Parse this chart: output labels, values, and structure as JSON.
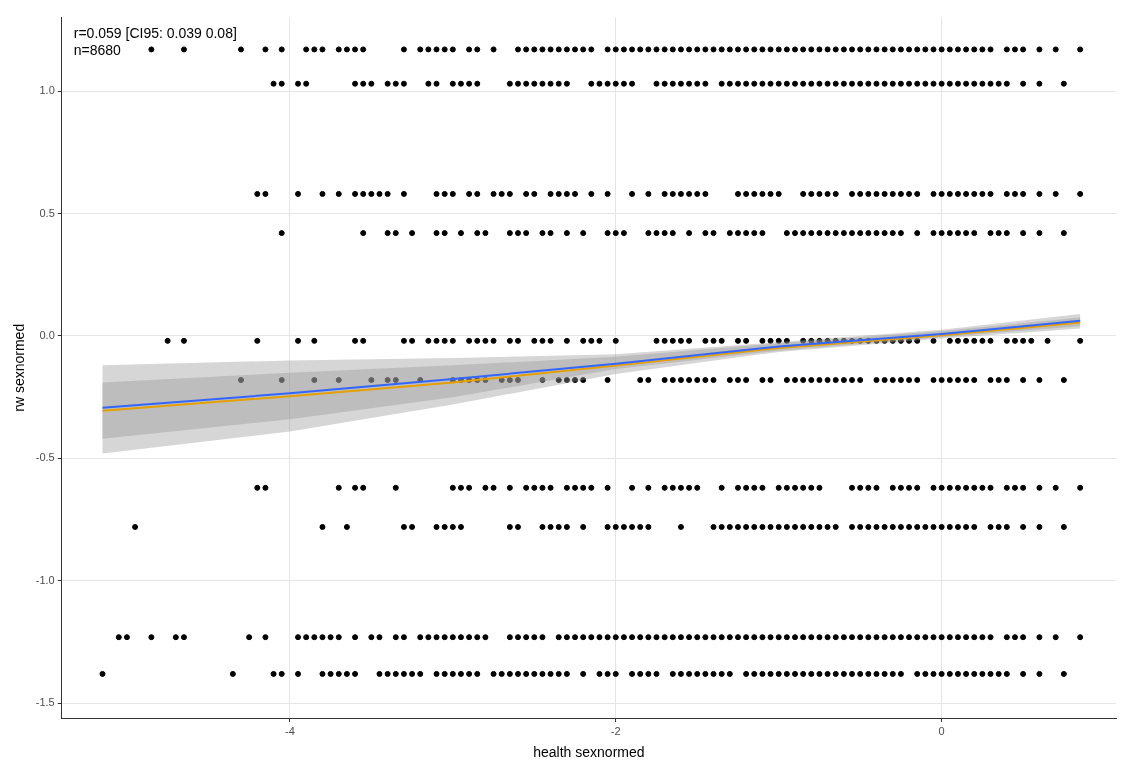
{
  "chart_data": {
    "type": "scatter",
    "xlabel": "health sexnormed",
    "ylabel": "rw sexnormed",
    "annotations": [
      "r=0.059 [CI95: 0.039 0.08]",
      "n=8680"
    ],
    "xlim": [
      -5.4,
      1.07
    ],
    "ylim": [
      -1.56,
      1.3
    ],
    "xticks": [
      -4,
      -2,
      0
    ],
    "yticks": [
      {
        "value": -1.5,
        "label": "-1.5"
      },
      {
        "value": -1,
        "label": "-1.0"
      },
      {
        "value": -0.5,
        "label": "-0.5"
      },
      {
        "value": 0,
        "label": "0.0"
      },
      {
        "value": 0.5,
        "label": "0.5"
      },
      {
        "value": 1,
        "label": "1.0"
      }
    ],
    "grid": true,
    "legend": false,
    "marker": "circle",
    "series": [
      {
        "color": "#000000",
        "x": [
          -4.85,
          -4.65,
          -4.3,
          -4.15,
          -4.05,
          -3.9,
          -3.85,
          -3.8,
          -3.7,
          -3.65,
          -3.6,
          -3.55,
          -3.3,
          -3.2,
          -3.15,
          -3.1,
          -3.05,
          -3.0,
          -2.9,
          -2.85,
          -2.75,
          -2.6,
          -2.55,
          -2.5,
          -2.45,
          -2.4,
          -2.35,
          -2.3,
          -2.25,
          -2.2,
          -2.15,
          -2.05,
          -2,
          -1.95,
          -1.9,
          -1.85,
          -1.8,
          -1.75,
          -1.7,
          -1.65,
          -1.6,
          -1.55,
          -1.5,
          -1.45,
          -1.4,
          -1.35,
          -1.3,
          -1.25,
          -1.2,
          -1.15,
          -1.1,
          -1.05,
          -1,
          -0.95,
          -0.9,
          -0.85,
          -0.8,
          -0.75,
          -0.7,
          -0.65,
          -0.6,
          -0.55,
          -0.5,
          -0.45,
          -0.4,
          -0.35,
          -0.3,
          -0.25,
          -0.2,
          -0.15,
          -0.1,
          -0.05,
          0,
          0.05,
          0.1,
          0.15,
          0.2,
          0.25,
          0.3,
          0.4,
          0.45,
          0.5,
          0.6,
          0.7,
          0.85
        ],
        "values": [
          1.17,
          1.17,
          1.17,
          1.17,
          1.17,
          1.17,
          1.17,
          1.17,
          1.17,
          1.17,
          1.17,
          1.17,
          1.17,
          1.17,
          1.17,
          1.17,
          1.17,
          1.17,
          1.17,
          1.17,
          1.17,
          1.17,
          1.17,
          1.17,
          1.17,
          1.17,
          1.17,
          1.17,
          1.17,
          1.17,
          1.17,
          1.17,
          1.17,
          1.17,
          1.17,
          1.17,
          1.17,
          1.17,
          1.17,
          1.17,
          1.17,
          1.17,
          1.17,
          1.17,
          1.17,
          1.17,
          1.17,
          1.17,
          1.17,
          1.17,
          1.17,
          1.17,
          1.17,
          1.17,
          1.17,
          1.17,
          1.17,
          1.17,
          1.17,
          1.17,
          1.17,
          1.17,
          1.17,
          1.17,
          1.17,
          1.17,
          1.17,
          1.17,
          1.17,
          1.17,
          1.17,
          1.17,
          1.17,
          1.17,
          1.17,
          1.17,
          1.17,
          1.17,
          1.17,
          1.17,
          1.17,
          1.17,
          1.17,
          1.17,
          1.17
        ]
      },
      {
        "color": "#000000",
        "x": [
          -4.1,
          -4.05,
          -3.95,
          -3.9,
          -3.6,
          -3.55,
          -3.5,
          -3.4,
          -3.35,
          -3.3,
          -3.15,
          -3.1,
          -3.0,
          -2.95,
          -2.9,
          -2.85,
          -2.65,
          -2.6,
          -2.55,
          -2.5,
          -2.45,
          -2.4,
          -2.35,
          -2.3,
          -2.15,
          -2.1,
          -2.05,
          -2,
          -1.95,
          -1.9,
          -1.75,
          -1.7,
          -1.65,
          -1.6,
          -1.55,
          -1.5,
          -1.45,
          -1.35,
          -1.3,
          -1.25,
          -1.2,
          -1.15,
          -1.1,
          -1.05,
          -1,
          -0.95,
          -0.9,
          -0.85,
          -0.8,
          -0.75,
          -0.7,
          -0.65,
          -0.6,
          -0.55,
          -0.5,
          -0.45,
          -0.4,
          -0.35,
          -0.3,
          -0.25,
          -0.2,
          -0.15,
          -0.1,
          -0.05,
          0,
          0.05,
          0.1,
          0.15,
          0.2,
          0.25,
          0.3,
          0.35,
          0.4,
          0.5,
          0.6,
          0.75
        ],
        "values": [
          1.03,
          1.03,
          1.03,
          1.03,
          1.03,
          1.03,
          1.03,
          1.03,
          1.03,
          1.03,
          1.03,
          1.03,
          1.03,
          1.03,
          1.03,
          1.03,
          1.03,
          1.03,
          1.03,
          1.03,
          1.03,
          1.03,
          1.03,
          1.03,
          1.03,
          1.03,
          1.03,
          1.03,
          1.03,
          1.03,
          1.03,
          1.03,
          1.03,
          1.03,
          1.03,
          1.03,
          1.03,
          1.03,
          1.03,
          1.03,
          1.03,
          1.03,
          1.03,
          1.03,
          1.03,
          1.03,
          1.03,
          1.03,
          1.03,
          1.03,
          1.03,
          1.03,
          1.03,
          1.03,
          1.03,
          1.03,
          1.03,
          1.03,
          1.03,
          1.03,
          1.03,
          1.03,
          1.03,
          1.03,
          1.03,
          1.03,
          1.03,
          1.03,
          1.03,
          1.03,
          1.03,
          1.03,
          1.03,
          1.03,
          1.03,
          1.03
        ]
      },
      {
        "color": "#000000",
        "x": [
          -4.2,
          -4.15,
          -3.95,
          -3.8,
          -3.7,
          -3.6,
          -3.55,
          -3.5,
          -3.45,
          -3.4,
          -3.3,
          -3.1,
          -3.05,
          -3.0,
          -2.9,
          -2.85,
          -2.75,
          -2.7,
          -2.65,
          -2.55,
          -2.5,
          -2.4,
          -2.35,
          -2.3,
          -2.25,
          -2.15,
          -2.05,
          -1.9,
          -1.8,
          -1.7,
          -1.65,
          -1.6,
          -1.55,
          -1.5,
          -1.45,
          -1.25,
          -1.2,
          -1.15,
          -1.1,
          -1.05,
          -1.0,
          -0.85,
          -0.8,
          -0.75,
          -0.7,
          -0.65,
          -0.55,
          -0.5,
          -0.45,
          -0.4,
          -0.35,
          -0.3,
          -0.25,
          -0.2,
          -0.15,
          -0.05,
          0,
          0.05,
          0.1,
          0.15,
          0.2,
          0.25,
          0.3,
          0.4,
          0.45,
          0.5,
          0.6,
          0.7,
          0.85
        ],
        "values": [
          0.58,
          0.58,
          0.58,
          0.58,
          0.58,
          0.58,
          0.58,
          0.58,
          0.58,
          0.58,
          0.58,
          0.58,
          0.58,
          0.58,
          0.58,
          0.58,
          0.58,
          0.58,
          0.58,
          0.58,
          0.58,
          0.58,
          0.58,
          0.58,
          0.58,
          0.58,
          0.58,
          0.58,
          0.58,
          0.58,
          0.58,
          0.58,
          0.58,
          0.58,
          0.58,
          0.58,
          0.58,
          0.58,
          0.58,
          0.58,
          0.58,
          0.58,
          0.58,
          0.58,
          0.58,
          0.58,
          0.58,
          0.58,
          0.58,
          0.58,
          0.58,
          0.58,
          0.58,
          0.58,
          0.58,
          0.58,
          0.58,
          0.58,
          0.58,
          0.58,
          0.58,
          0.58,
          0.58,
          0.58,
          0.58,
          0.58,
          0.58,
          0.58,
          0.58
        ]
      },
      {
        "color": "#000000",
        "x": [
          -4.05,
          -3.55,
          -3.4,
          -3.35,
          -3.25,
          -3.1,
          -3.05,
          -2.95,
          -2.85,
          -2.8,
          -2.65,
          -2.6,
          -2.55,
          -2.45,
          -2.4,
          -2.3,
          -2.2,
          -2.05,
          -2,
          -1.95,
          -1.8,
          -1.75,
          -1.7,
          -1.65,
          -1.55,
          -1.45,
          -1.4,
          -1.3,
          -1.25,
          -1.2,
          -1.15,
          -1.1,
          -0.95,
          -0.9,
          -0.85,
          -0.8,
          -0.75,
          -0.7,
          -0.65,
          -0.6,
          -0.55,
          -0.5,
          -0.45,
          -0.4,
          -0.35,
          -0.3,
          -0.25,
          -0.15,
          -0.05,
          0,
          0.05,
          0.1,
          0.15,
          0.2,
          0.3,
          0.35,
          0.4,
          0.5,
          0.6,
          0.75
        ],
        "values": [
          0.42,
          0.42,
          0.42,
          0.42,
          0.42,
          0.42,
          0.42,
          0.42,
          0.42,
          0.42,
          0.42,
          0.42,
          0.42,
          0.42,
          0.42,
          0.42,
          0.42,
          0.42,
          0.42,
          0.42,
          0.42,
          0.42,
          0.42,
          0.42,
          0.42,
          0.42,
          0.42,
          0.42,
          0.42,
          0.42,
          0.42,
          0.42,
          0.42,
          0.42,
          0.42,
          0.42,
          0.42,
          0.42,
          0.42,
          0.42,
          0.42,
          0.42,
          0.42,
          0.42,
          0.42,
          0.42,
          0.42,
          0.42,
          0.42,
          0.42,
          0.42,
          0.42,
          0.42,
          0.42,
          0.42,
          0.42,
          0.42,
          0.42,
          0.42,
          0.42
        ]
      },
      {
        "color": "#000000",
        "x": [
          -4.75,
          -4.65,
          -4.2,
          -3.95,
          -3.85,
          -3.6,
          -3.55,
          -3.3,
          -3.25,
          -3.15,
          -3.1,
          -3.05,
          -3.0,
          -2.9,
          -2.85,
          -2.8,
          -2.75,
          -2.65,
          -2.6,
          -2.5,
          -2.45,
          -2.4,
          -2.3,
          -2.2,
          -2.15,
          -2.1,
          -2.0,
          -1.75,
          -1.7,
          -1.65,
          -1.6,
          -1.55,
          -1.45,
          -1.4,
          -1.35,
          -1.25,
          -1.2,
          -1.1,
          -1.05,
          -1.0,
          -0.95,
          -0.85,
          -0.8,
          -0.75,
          -0.7,
          -0.65,
          -0.6,
          -0.55,
          -0.5,
          -0.45,
          -0.4,
          -0.35,
          -0.3,
          -0.25,
          -0.2,
          -0.15,
          -0.05,
          0.05,
          0.1,
          0.15,
          0.2,
          0.25,
          0.3,
          0.4,
          0.45,
          0.5,
          0.55,
          0.65,
          0.85
        ],
        "values": [
          -0.02,
          -0.02,
          -0.02,
          -0.02,
          -0.02,
          -0.02,
          -0.02,
          -0.02,
          -0.02,
          -0.02,
          -0.02,
          -0.02,
          -0.02,
          -0.02,
          -0.02,
          -0.02,
          -0.02,
          -0.02,
          -0.02,
          -0.02,
          -0.02,
          -0.02,
          -0.02,
          -0.02,
          -0.02,
          -0.02,
          -0.02,
          -0.02,
          -0.02,
          -0.02,
          -0.02,
          -0.02,
          -0.02,
          -0.02,
          -0.02,
          -0.02,
          -0.02,
          -0.02,
          -0.02,
          -0.02,
          -0.02,
          -0.02,
          -0.02,
          -0.02,
          -0.02,
          -0.02,
          -0.02,
          -0.02,
          -0.02,
          -0.02,
          -0.02,
          -0.02,
          -0.02,
          -0.02,
          -0.02,
          -0.02,
          -0.02,
          -0.02,
          -0.02,
          -0.02,
          -0.02,
          -0.02,
          -0.02,
          -0.02,
          -0.02,
          -0.02,
          -0.02,
          -0.02,
          -0.02
        ]
      },
      {
        "color": "#000000",
        "x": [
          -4.3,
          -4.05,
          -3.85,
          -3.7,
          -3.5,
          -3.4,
          -3.35,
          -3.2,
          -3.0,
          -2.95,
          -2.9,
          -2.85,
          -2.8,
          -2.7,
          -2.65,
          -2.6,
          -2.45,
          -2.35,
          -2.3,
          -2.25,
          -2.2,
          -2.05,
          -1.85,
          -1.8,
          -1.7,
          -1.65,
          -1.6,
          -1.55,
          -1.5,
          -1.45,
          -1.4,
          -1.3,
          -1.25,
          -1.2,
          -1.1,
          -1.05,
          -0.95,
          -0.9,
          -0.85,
          -0.8,
          -0.75,
          -0.7,
          -0.65,
          -0.6,
          -0.55,
          -0.5,
          -0.4,
          -0.35,
          -0.3,
          -0.25,
          -0.2,
          -0.15,
          -0.05,
          0,
          0.05,
          0.1,
          0.15,
          0.2,
          0.3,
          0.35,
          0.4,
          0.5,
          0.6,
          0.75
        ],
        "values": [
          -0.18,
          -0.18,
          -0.18,
          -0.18,
          -0.18,
          -0.18,
          -0.18,
          -0.18,
          -0.18,
          -0.18,
          -0.18,
          -0.18,
          -0.18,
          -0.18,
          -0.18,
          -0.18,
          -0.18,
          -0.18,
          -0.18,
          -0.18,
          -0.18,
          -0.18,
          -0.18,
          -0.18,
          -0.18,
          -0.18,
          -0.18,
          -0.18,
          -0.18,
          -0.18,
          -0.18,
          -0.18,
          -0.18,
          -0.18,
          -0.18,
          -0.18,
          -0.18,
          -0.18,
          -0.18,
          -0.18,
          -0.18,
          -0.18,
          -0.18,
          -0.18,
          -0.18,
          -0.18,
          -0.18,
          -0.18,
          -0.18,
          -0.18,
          -0.18,
          -0.18,
          -0.18,
          -0.18,
          -0.18,
          -0.18,
          -0.18,
          -0.18,
          -0.18,
          -0.18,
          -0.18,
          -0.18,
          -0.18,
          -0.18
        ]
      },
      {
        "color": "#000000",
        "x": [
          -4.2,
          -4.15,
          -3.7,
          -3.6,
          -3.55,
          -3.35,
          -3.0,
          -2.95,
          -2.9,
          -2.8,
          -2.75,
          -2.65,
          -2.55,
          -2.5,
          -2.45,
          -2.4,
          -2.3,
          -2.25,
          -2.2,
          -2.15,
          -2.05,
          -1.9,
          -1.8,
          -1.7,
          -1.65,
          -1.6,
          -1.55,
          -1.5,
          -1.35,
          -1.25,
          -1.2,
          -1.15,
          -1.1,
          -1.0,
          -0.95,
          -0.9,
          -0.85,
          -0.8,
          -0.75,
          -0.55,
          -0.5,
          -0.45,
          -0.4,
          -0.3,
          -0.25,
          -0.2,
          -0.15,
          -0.05,
          0,
          0.05,
          0.1,
          0.15,
          0.2,
          0.25,
          0.3,
          0.4,
          0.45,
          0.5,
          0.6,
          0.7,
          0.85
        ],
        "values": [
          -0.62,
          -0.62,
          -0.62,
          -0.62,
          -0.62,
          -0.62,
          -0.62,
          -0.62,
          -0.62,
          -0.62,
          -0.62,
          -0.62,
          -0.62,
          -0.62,
          -0.62,
          -0.62,
          -0.62,
          -0.62,
          -0.62,
          -0.62,
          -0.62,
          -0.62,
          -0.62,
          -0.62,
          -0.62,
          -0.62,
          -0.62,
          -0.62,
          -0.62,
          -0.62,
          -0.62,
          -0.62,
          -0.62,
          -0.62,
          -0.62,
          -0.62,
          -0.62,
          -0.62,
          -0.62,
          -0.62,
          -0.62,
          -0.62,
          -0.62,
          -0.62,
          -0.62,
          -0.62,
          -0.62,
          -0.62,
          -0.62,
          -0.62,
          -0.62,
          -0.62,
          -0.62,
          -0.62,
          -0.62,
          -0.62,
          -0.62,
          -0.62,
          -0.62,
          -0.62,
          -0.62
        ]
      },
      {
        "color": "#000000",
        "x": [
          -4.95,
          -3.8,
          -3.65,
          -3.3,
          -3.25,
          -3.1,
          -3.05,
          -3.0,
          -2.95,
          -2.65,
          -2.6,
          -2.45,
          -2.4,
          -2.35,
          -2.3,
          -2.2,
          -2.05,
          -2,
          -1.95,
          -1.9,
          -1.85,
          -1.8,
          -1.6,
          -1.4,
          -1.35,
          -1.3,
          -1.25,
          -1.2,
          -1.15,
          -1.1,
          -1.05,
          -1,
          -0.95,
          -0.9,
          -0.85,
          -0.8,
          -0.75,
          -0.7,
          -0.65,
          -0.55,
          -0.5,
          -0.45,
          -0.4,
          -0.35,
          -0.3,
          -0.25,
          -0.2,
          -0.15,
          -0.1,
          -0.05,
          0,
          0.05,
          0.1,
          0.15,
          0.2,
          0.3,
          0.35,
          0.4,
          0.5,
          0.6,
          0.75
        ],
        "values": [
          -0.78,
          -0.78,
          -0.78,
          -0.78,
          -0.78,
          -0.78,
          -0.78,
          -0.78,
          -0.78,
          -0.78,
          -0.78,
          -0.78,
          -0.78,
          -0.78,
          -0.78,
          -0.78,
          -0.78,
          -0.78,
          -0.78,
          -0.78,
          -0.78,
          -0.78,
          -0.78,
          -0.78,
          -0.78,
          -0.78,
          -0.78,
          -0.78,
          -0.78,
          -0.78,
          -0.78,
          -0.78,
          -0.78,
          -0.78,
          -0.78,
          -0.78,
          -0.78,
          -0.78,
          -0.78,
          -0.78,
          -0.78,
          -0.78,
          -0.78,
          -0.78,
          -0.78,
          -0.78,
          -0.78,
          -0.78,
          -0.78,
          -0.78,
          -0.78,
          -0.78,
          -0.78,
          -0.78,
          -0.78,
          -0.78,
          -0.78,
          -0.78,
          -0.78,
          -0.78,
          -0.78
        ]
      },
      {
        "color": "#000000",
        "x": [
          -5.05,
          -5.0,
          -4.85,
          -4.7,
          -4.65,
          -4.25,
          -4.15,
          -3.95,
          -3.9,
          -3.85,
          -3.8,
          -3.75,
          -3.7,
          -3.6,
          -3.5,
          -3.45,
          -3.35,
          -3.3,
          -3.2,
          -3.15,
          -3.1,
          -3.05,
          -3.0,
          -2.95,
          -2.9,
          -2.85,
          -2.8,
          -2.65,
          -2.6,
          -2.55,
          -2.5,
          -2.45,
          -2.35,
          -2.3,
          -2.25,
          -2.2,
          -2.15,
          -2.1,
          -2.05,
          -2,
          -1.95,
          -1.9,
          -1.85,
          -1.8,
          -1.75,
          -1.7,
          -1.65,
          -1.6,
          -1.55,
          -1.5,
          -1.45,
          -1.4,
          -1.35,
          -1.3,
          -1.25,
          -1.2,
          -1.15,
          -1.1,
          -1.05,
          -1,
          -0.95,
          -0.9,
          -0.85,
          -0.8,
          -0.75,
          -0.7,
          -0.65,
          -0.6,
          -0.55,
          -0.5,
          -0.45,
          -0.4,
          -0.35,
          -0.3,
          -0.25,
          -0.2,
          -0.15,
          -0.1,
          -0.05,
          0,
          0.05,
          0.1,
          0.15,
          0.2,
          0.25,
          0.3,
          0.4,
          0.45,
          0.5,
          0.6,
          0.7,
          0.85
        ],
        "values": [
          -1.23,
          -1.23,
          -1.23,
          -1.23,
          -1.23,
          -1.23,
          -1.23,
          -1.23,
          -1.23,
          -1.23,
          -1.23,
          -1.23,
          -1.23,
          -1.23,
          -1.23,
          -1.23,
          -1.23,
          -1.23,
          -1.23,
          -1.23,
          -1.23,
          -1.23,
          -1.23,
          -1.23,
          -1.23,
          -1.23,
          -1.23,
          -1.23,
          -1.23,
          -1.23,
          -1.23,
          -1.23,
          -1.23,
          -1.23,
          -1.23,
          -1.23,
          -1.23,
          -1.23,
          -1.23,
          -1.23,
          -1.23,
          -1.23,
          -1.23,
          -1.23,
          -1.23,
          -1.23,
          -1.23,
          -1.23,
          -1.23,
          -1.23,
          -1.23,
          -1.23,
          -1.23,
          -1.23,
          -1.23,
          -1.23,
          -1.23,
          -1.23,
          -1.23,
          -1.23,
          -1.23,
          -1.23,
          -1.23,
          -1.23,
          -1.23,
          -1.23,
          -1.23,
          -1.23,
          -1.23,
          -1.23,
          -1.23,
          -1.23,
          -1.23,
          -1.23,
          -1.23,
          -1.23,
          -1.23,
          -1.23,
          -1.23,
          -1.23,
          -1.23,
          -1.23,
          -1.23,
          -1.23,
          -1.23,
          -1.23,
          -1.23,
          -1.23,
          -1.23,
          -1.23,
          -1.23,
          -1.23
        ]
      },
      {
        "color": "#000000",
        "x": [
          -5.15,
          -4.35,
          -4.1,
          -4.05,
          -3.95,
          -3.8,
          -3.75,
          -3.7,
          -3.65,
          -3.6,
          -3.45,
          -3.4,
          -3.35,
          -3.3,
          -3.25,
          -3.2,
          -3.1,
          -3.05,
          -3.0,
          -2.95,
          -2.9,
          -2.85,
          -2.75,
          -2.7,
          -2.65,
          -2.6,
          -2.55,
          -2.5,
          -2.45,
          -2.4,
          -2.35,
          -2.3,
          -2.2,
          -2.1,
          -2.05,
          -2.0,
          -1.9,
          -1.85,
          -1.8,
          -1.75,
          -1.65,
          -1.6,
          -1.55,
          -1.5,
          -1.45,
          -1.4,
          -1.35,
          -1.3,
          -1.2,
          -1.15,
          -1.1,
          -1.05,
          -1,
          -0.95,
          -0.9,
          -0.85,
          -0.8,
          -0.75,
          -0.7,
          -0.65,
          -0.6,
          -0.55,
          -0.5,
          -0.45,
          -0.4,
          -0.35,
          -0.3,
          -0.25,
          -0.15,
          -0.1,
          -0.05,
          0,
          0.05,
          0.1,
          0.15,
          0.2,
          0.25,
          0.3,
          0.35,
          0.4,
          0.5,
          0.6,
          0.75
        ],
        "values": [
          -1.38,
          -1.38,
          -1.38,
          -1.38,
          -1.38,
          -1.38,
          -1.38,
          -1.38,
          -1.38,
          -1.38,
          -1.38,
          -1.38,
          -1.38,
          -1.38,
          -1.38,
          -1.38,
          -1.38,
          -1.38,
          -1.38,
          -1.38,
          -1.38,
          -1.38,
          -1.38,
          -1.38,
          -1.38,
          -1.38,
          -1.38,
          -1.38,
          -1.38,
          -1.38,
          -1.38,
          -1.38,
          -1.38,
          -1.38,
          -1.38,
          -1.38,
          -1.38,
          -1.38,
          -1.38,
          -1.38,
          -1.38,
          -1.38,
          -1.38,
          -1.38,
          -1.38,
          -1.38,
          -1.38,
          -1.38,
          -1.38,
          -1.38,
          -1.38,
          -1.38,
          -1.38,
          -1.38,
          -1.38,
          -1.38,
          -1.38,
          -1.38,
          -1.38,
          -1.38,
          -1.38,
          -1.38,
          -1.38,
          -1.38,
          -1.38,
          -1.38,
          -1.38,
          -1.38,
          -1.38,
          -1.38,
          -1.38,
          -1.38,
          -1.38,
          -1.38,
          -1.38,
          -1.38,
          -1.38,
          -1.38,
          -1.38,
          -1.38,
          -1.38,
          -1.38,
          -1.38
        ]
      },
      {
        "type": "line",
        "color": "#e69f00",
        "marker": "none",
        "x": [
          -5.15,
          -4,
          -3,
          -2,
          -1,
          0,
          0.85
        ],
        "values": [
          -0.305,
          -0.246,
          -0.19,
          -0.121,
          -0.049,
          0.003,
          0.055
        ],
        "lower": [
          -0.48,
          -0.39,
          -0.28,
          -0.155,
          -0.065,
          -0.01,
          0.03
        ],
        "upper": [
          -0.12,
          -0.1,
          -0.09,
          -0.075,
          -0.025,
          0.025,
          0.09
        ]
      },
      {
        "type": "line",
        "color": "#3366ff",
        "marker": "none",
        "x": [
          -5.15,
          -4,
          -3,
          -2,
          -1,
          0,
          0.85
        ],
        "values": [
          -0.293,
          -0.234,
          -0.176,
          -0.113,
          -0.043,
          0.008,
          0.062
        ],
        "lower": [
          -0.42,
          -0.34,
          -0.25,
          -0.135,
          -0.06,
          -0.005,
          0.04
        ],
        "upper": [
          -0.19,
          -0.15,
          -0.12,
          -0.085,
          -0.03,
          0.02,
          0.075
        ]
      }
    ]
  }
}
